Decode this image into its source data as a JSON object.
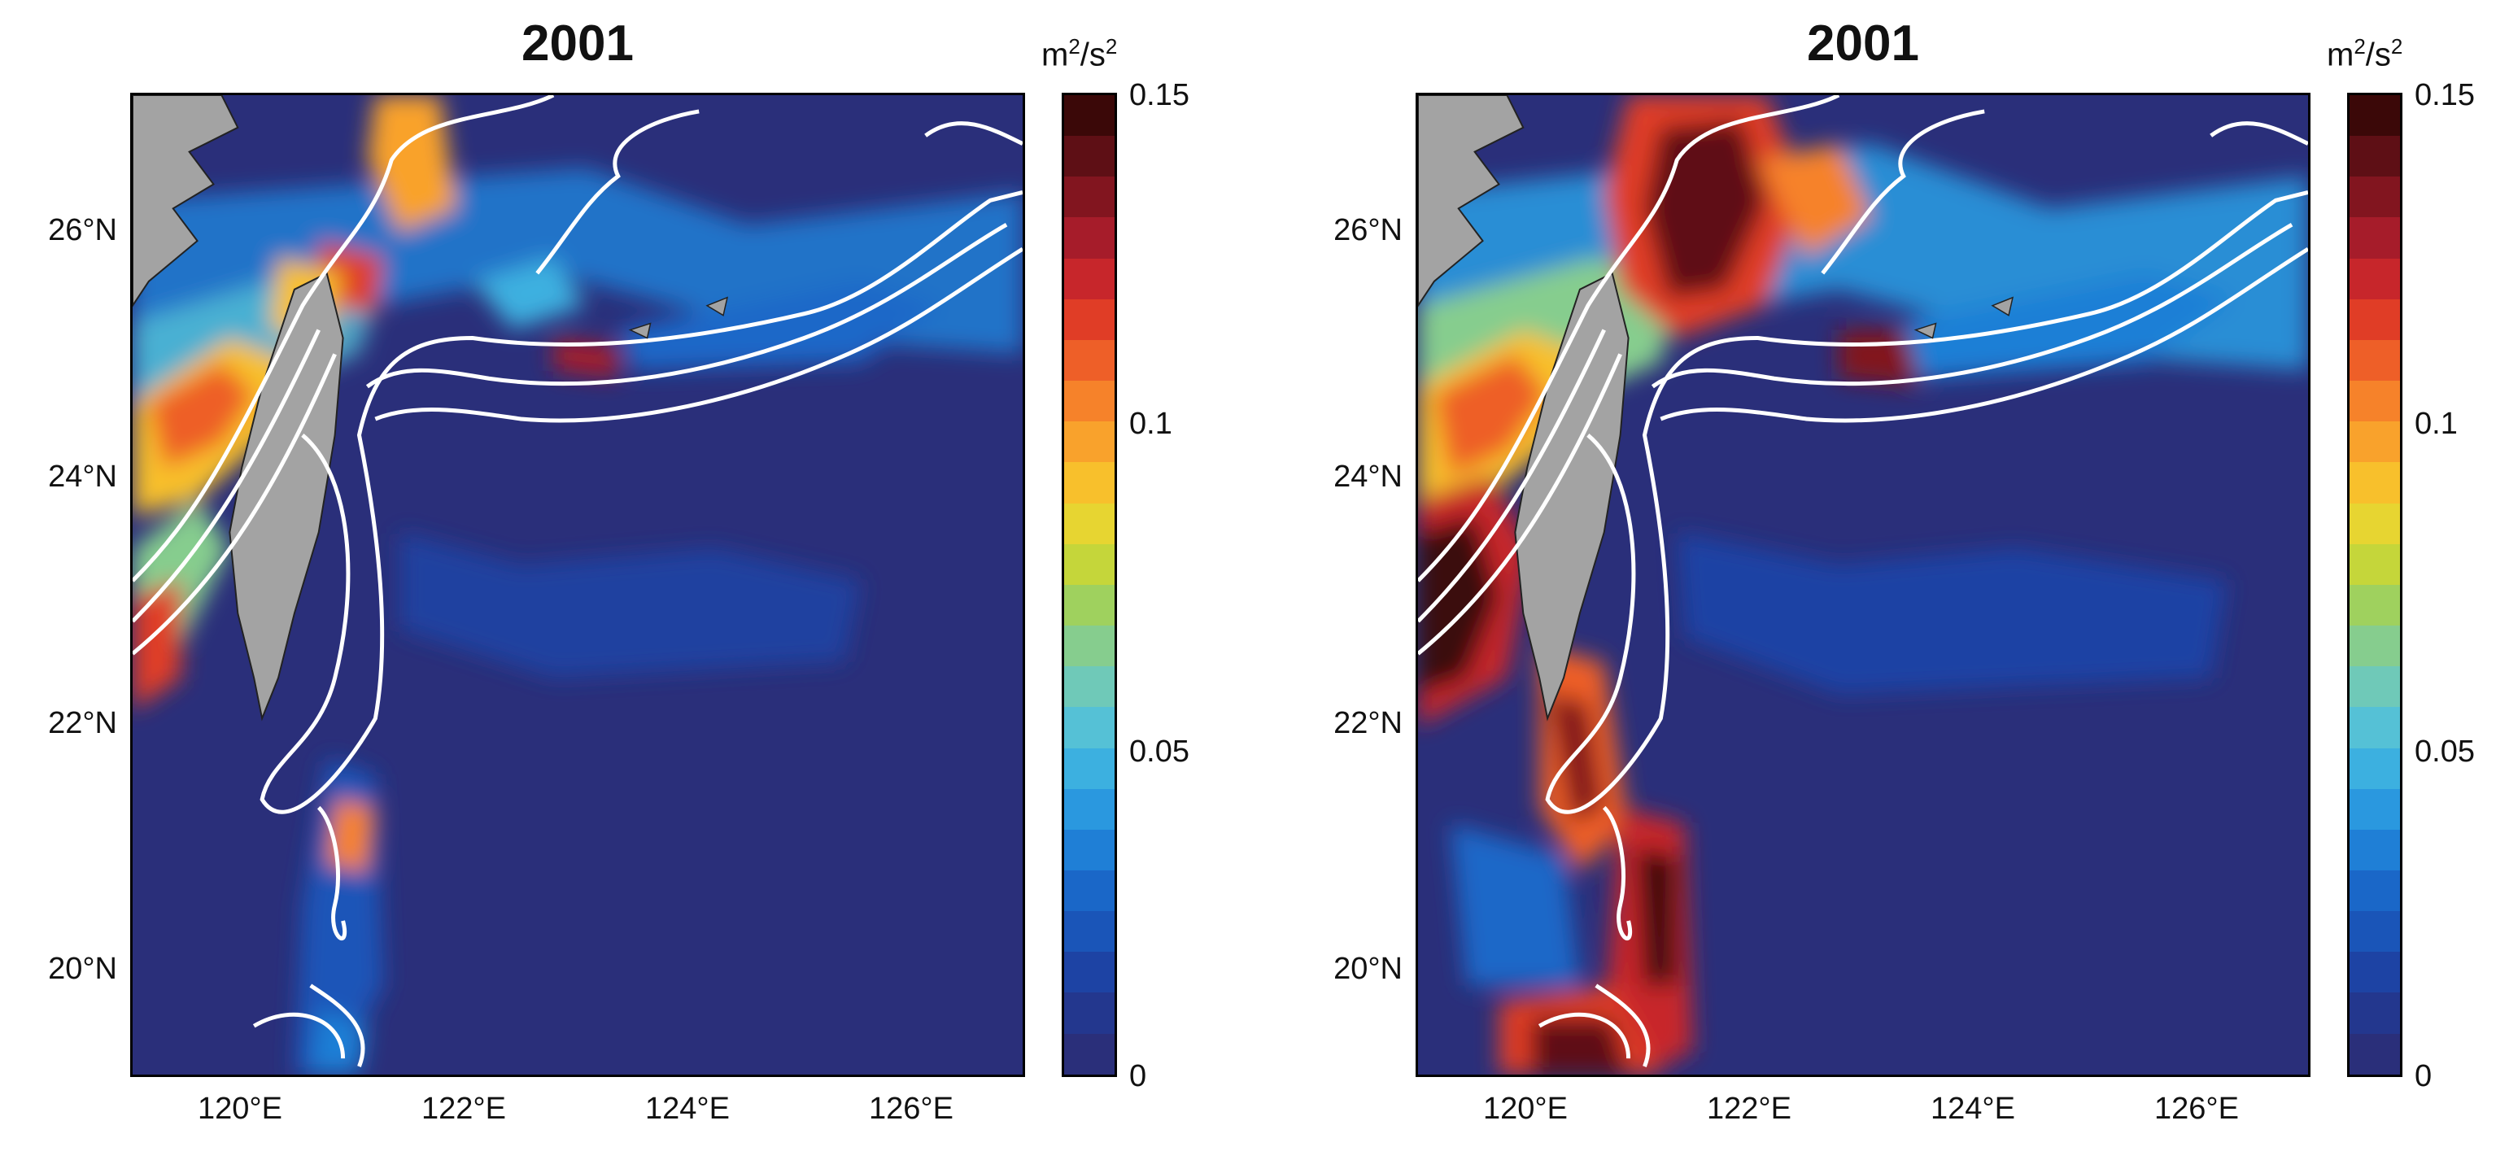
{
  "panels": [
    {
      "id": "left",
      "title": "2001",
      "xticks": [
        "120°E",
        "122°E",
        "124°E",
        "126°E"
      ],
      "yticks": [
        "26°N",
        "24°N",
        "22°N",
        "20°N"
      ],
      "colorbar": {
        "unit_base": "m",
        "unit_sup1": "2",
        "unit_mid": "/s",
        "unit_sup2": "2",
        "ticks": [
          "0.15",
          "0.1",
          "0.05",
          "0"
        ]
      }
    },
    {
      "id": "right",
      "title": "2001",
      "xticks": [
        "120°E",
        "122°E",
        "124°E",
        "126°E"
      ],
      "yticks": [
        "26°N",
        "24°N",
        "22°N",
        "20°N"
      ],
      "colorbar": {
        "unit_base": "m",
        "unit_sup1": "2",
        "unit_mid": "/s",
        "unit_sup2": "2",
        "ticks": [
          "0.15",
          "0.1",
          "0.05",
          "0"
        ]
      }
    }
  ],
  "map": {
    "lon_range": [
      119,
      127
    ],
    "lat_range": [
      19,
      27
    ],
    "colorbar_range": [
      0,
      0.15
    ],
    "land_color": "#a3a3a3",
    "ocean_base_color": "#2a2f7a",
    "contour_color": "#ffffff"
  },
  "colormap": [
    "#2a2f7a",
    "#23378e",
    "#1d43a4",
    "#1a55b8",
    "#1a67c8",
    "#1f7fd6",
    "#2a98df",
    "#3cb0e0",
    "#55c1d6",
    "#6fc9b8",
    "#86cd8e",
    "#9fd15e",
    "#c5d63a",
    "#e7d531",
    "#f8c02c",
    "#f9a22c",
    "#f6822a",
    "#ee5f28",
    "#e03d26",
    "#c7262b",
    "#a61c2a",
    "#82151f",
    "#5e0f15",
    "#3b0808"
  ]
}
